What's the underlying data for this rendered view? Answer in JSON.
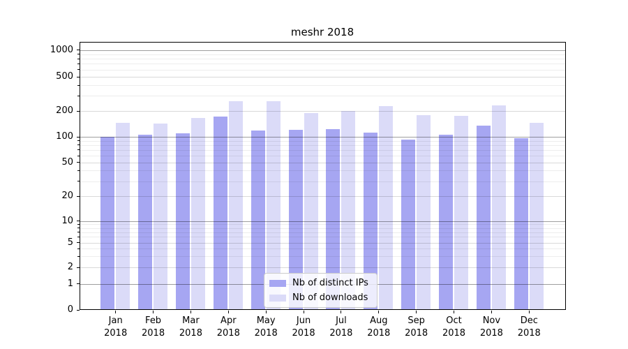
{
  "title": "meshr 2018",
  "chart_data": {
    "type": "bar",
    "title": "meshr 2018",
    "categories": [
      "Jan 2018",
      "Feb 2018",
      "Mar 2018",
      "Apr 2018",
      "May 2018",
      "Jun 2018",
      "Jul 2018",
      "Aug 2018",
      "Sep 2018",
      "Oct 2018",
      "Nov 2018",
      "Dec 2018"
    ],
    "series": [
      {
        "name": "Nb of distinct IPs",
        "color": "#a6a6f2",
        "values": [
          100,
          105,
          110,
          174,
          118,
          121,
          123,
          112,
          93,
          105,
          135,
          97
        ]
      },
      {
        "name": "Nb of downloads",
        "color": "#dbdbf8",
        "values": [
          147,
          144,
          166,
          260,
          260,
          191,
          201,
          228,
          180,
          176,
          234,
          147
        ]
      }
    ],
    "xlabel": "",
    "ylabel": "",
    "yscale": "symlog",
    "yticks": [
      0,
      1,
      2,
      5,
      10,
      20,
      50,
      100,
      200,
      500,
      1000
    ],
    "ylim": [
      0,
      1260
    ],
    "grid": true,
    "legend_position": "lower center"
  }
}
